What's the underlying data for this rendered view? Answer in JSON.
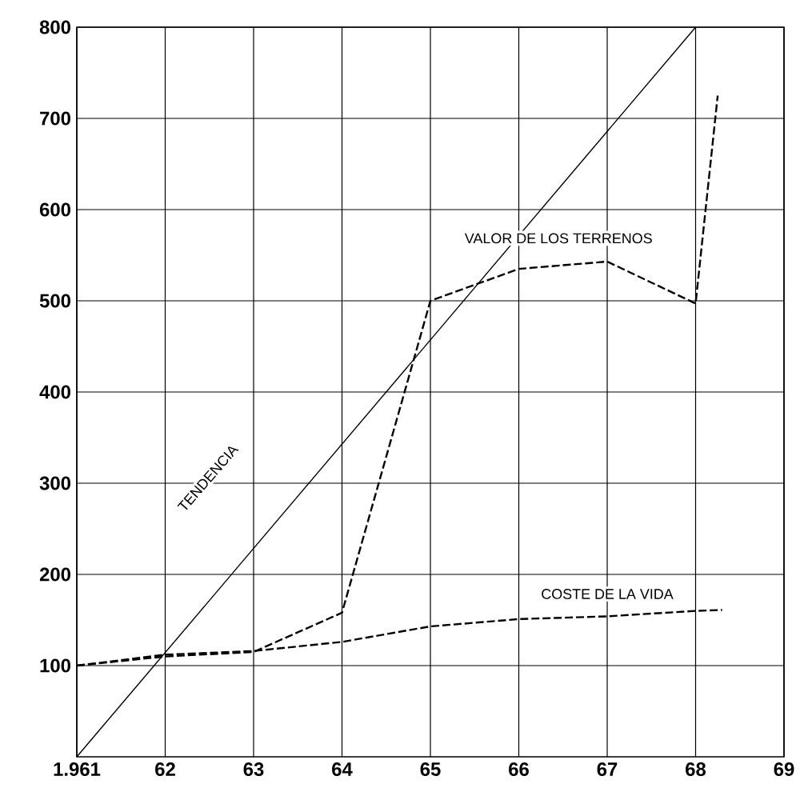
{
  "chart_data": {
    "type": "line",
    "xlim": [
      1961,
      1969
    ],
    "ylim": [
      0,
      800
    ],
    "xticks": [
      {
        "value": 1961,
        "label": "1.961"
      },
      {
        "value": 1962,
        "label": "62"
      },
      {
        "value": 1963,
        "label": "63"
      },
      {
        "value": 1964,
        "label": "64"
      },
      {
        "value": 1965,
        "label": "65"
      },
      {
        "value": 1966,
        "label": "66"
      },
      {
        "value": 1967,
        "label": "67"
      },
      {
        "value": 1968,
        "label": "68"
      },
      {
        "value": 1969,
        "label": "69"
      }
    ],
    "yticks": [
      100,
      200,
      300,
      400,
      500,
      600,
      700,
      800
    ],
    "grid": true,
    "series": [
      {
        "name": "TENDENCIA",
        "color": "#000000",
        "line_style": "solid",
        "x": [
          1961,
          1968
        ],
        "values": [
          0,
          800
        ]
      },
      {
        "name": "VALOR DE LOS TERRENOS",
        "color": "#000000",
        "line_style": "dashed",
        "x": [
          1961,
          1962,
          1963,
          1964,
          1965,
          1966,
          1967,
          1968,
          1968.25
        ],
        "values": [
          100,
          110,
          115,
          158,
          500,
          535,
          543,
          497,
          725
        ]
      },
      {
        "name": "COSTE DE LA VIDA",
        "color": "#000000",
        "line_style": "dashed",
        "x": [
          1961,
          1962,
          1963,
          1964,
          1965,
          1966,
          1967,
          1968,
          1968.3
        ],
        "values": [
          100,
          112,
          116,
          126,
          143,
          151,
          154,
          160,
          161
        ]
      }
    ]
  }
}
